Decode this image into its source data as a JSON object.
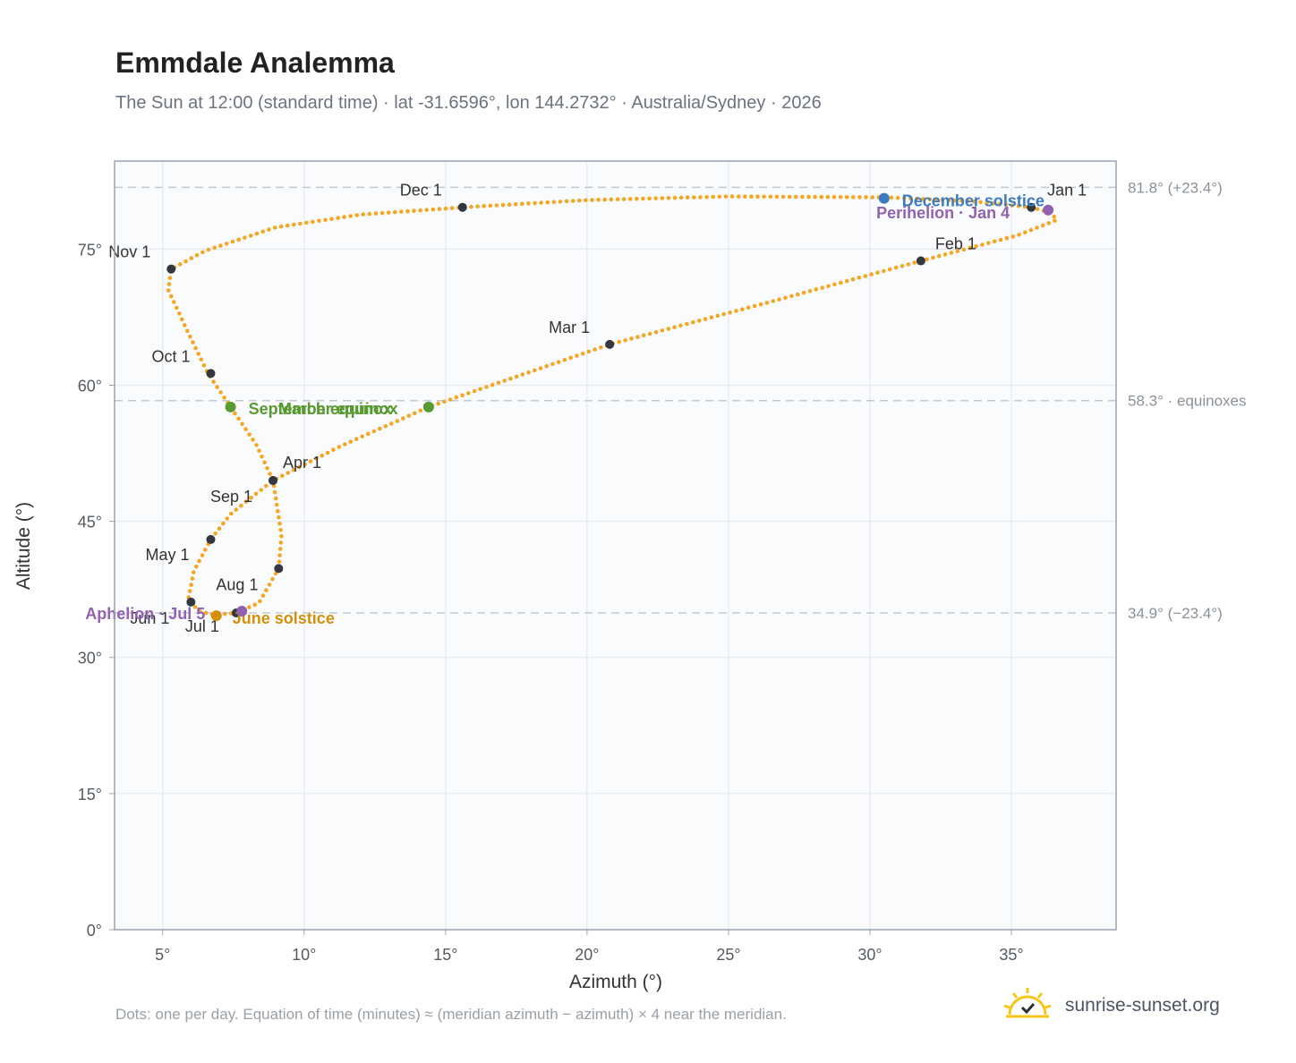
{
  "header": {
    "title": "Emmdale Analemma",
    "subtitle": "The Sun at 12:00 (standard time) · lat -31.6596°, lon 144.2732° · Australia/Sydney · 2026"
  },
  "footer": {
    "note": "Dots: one per day. Equation of time (minutes) ≈ (meridian azimuth − azimuth) × 4 near the meridian.",
    "brand": "sunrise-sunset.org"
  },
  "colors": {
    "curve": "#f5a623",
    "month_marker": "#333740",
    "equinox": "#5a9a32",
    "june_solstice": "#d4900a",
    "december_solstice": "#3b7bbf",
    "apsis": "#9062b0",
    "grid": "#e5e9ef",
    "reference_line": "#c3c9d2",
    "plot_background": "#f9fbfd"
  },
  "chart_data": {
    "type": "scatter",
    "xlabel": "Azimuth (°)",
    "ylabel": "Altitude (°)",
    "xlim": [
      3.3,
      38.7
    ],
    "ylim": [
      0,
      84.7
    ],
    "xticks": [
      5,
      10,
      15,
      20,
      25,
      30,
      35
    ],
    "yticks": [
      0,
      15,
      30,
      45,
      60,
      75
    ],
    "x_tick_labels": [
      "5°",
      "10°",
      "15°",
      "20°",
      "25°",
      "30°",
      "35°"
    ],
    "y_tick_labels": [
      "0°",
      "15°",
      "30°",
      "45°",
      "60°",
      "75°"
    ],
    "grid": true,
    "path_keypoints": [
      {
        "x": 35.7,
        "y": 79.6
      },
      {
        "x": 36.4,
        "y": 79.0
      },
      {
        "x": 36.6,
        "y": 78.2
      },
      {
        "x": 35.2,
        "y": 76.5
      },
      {
        "x": 31.8,
        "y": 73.7
      },
      {
        "x": 26.5,
        "y": 69.2
      },
      {
        "x": 20.8,
        "y": 64.5
      },
      {
        "x": 14.4,
        "y": 57.6
      },
      {
        "x": 11.3,
        "y": 53.3
      },
      {
        "x": 8.9,
        "y": 49.5
      },
      {
        "x": 7.4,
        "y": 45.8
      },
      {
        "x": 6.7,
        "y": 43.0
      },
      {
        "x": 6.1,
        "y": 39.5
      },
      {
        "x": 5.9,
        "y": 36.3
      },
      {
        "x": 6.3,
        "y": 35.1
      },
      {
        "x": 6.8,
        "y": 34.7
      },
      {
        "x": 7.6,
        "y": 34.9
      },
      {
        "x": 8.4,
        "y": 36.0
      },
      {
        "x": 9.1,
        "y": 39.8
      },
      {
        "x": 9.2,
        "y": 43.5
      },
      {
        "x": 8.9,
        "y": 49.5
      },
      {
        "x": 8.3,
        "y": 53.5
      },
      {
        "x": 7.4,
        "y": 57.6
      },
      {
        "x": 6.6,
        "y": 61.3
      },
      {
        "x": 5.9,
        "y": 65.8
      },
      {
        "x": 5.2,
        "y": 70.5
      },
      {
        "x": 5.3,
        "y": 72.8
      },
      {
        "x": 6.5,
        "y": 74.8
      },
      {
        "x": 9.0,
        "y": 77.4
      },
      {
        "x": 12.0,
        "y": 78.8
      },
      {
        "x": 15.6,
        "y": 79.6
      },
      {
        "x": 20.0,
        "y": 80.4
      },
      {
        "x": 25.0,
        "y": 80.8
      },
      {
        "x": 30.5,
        "y": 80.7
      },
      {
        "x": 33.5,
        "y": 80.3
      },
      {
        "x": 35.7,
        "y": 79.6
      }
    ],
    "month_markers": [
      {
        "label": "Jan 1",
        "x": 35.7,
        "y": 79.6,
        "ldx": 18,
        "ldy": -13
      },
      {
        "label": "Feb 1",
        "x": 31.8,
        "y": 73.7,
        "ldx": 16,
        "ldy": -13
      },
      {
        "label": "Mar 1",
        "x": 20.8,
        "y": 64.5,
        "ldx": -68,
        "ldy": -13
      },
      {
        "label": "Apr 1",
        "x": 8.9,
        "y": 49.5,
        "ldx": 11,
        "ldy": -14
      },
      {
        "label": "May 1",
        "x": 6.7,
        "y": 43.0,
        "ldx": -73,
        "ldy": 23
      },
      {
        "label": "Jun 1",
        "x": 6.0,
        "y": 36.1,
        "ldx": -68,
        "ldy": 24
      },
      {
        "label": "Jul 1",
        "x": 7.6,
        "y": 34.9,
        "ldx": -57,
        "ldy": 21
      },
      {
        "label": "Aug 1",
        "x": 9.1,
        "y": 39.8,
        "ldx": -70,
        "ldy": 24
      },
      {
        "label": "Sep 1",
        "x": 8.9,
        "y": 49.5,
        "ldx": -70,
        "ldy": 24
      },
      {
        "label": "Oct 1",
        "x": 6.7,
        "y": 61.3,
        "ldx": -66,
        "ldy": -13
      },
      {
        "label": "Nov 1",
        "x": 5.3,
        "y": 72.8,
        "ldx": -70,
        "ldy": -13
      },
      {
        "label": "Dec 1",
        "x": 15.6,
        "y": 79.6,
        "ldx": -70,
        "ldy": -13
      }
    ],
    "events": [
      {
        "label": "March equinox",
        "x": 14.4,
        "y": 57.6,
        "kind": "equinox",
        "ldx": -168,
        "ldy": 8
      },
      {
        "label": "September equinox",
        "x": 7.4,
        "y": 57.6,
        "kind": "equinox",
        "ldx": 20,
        "ldy": 8
      },
      {
        "label": "June solstice",
        "x": 6.9,
        "y": 34.6,
        "kind": "june_solstice",
        "ldx": 18,
        "ldy": 9
      },
      {
        "label": "December solstice",
        "x": 30.5,
        "y": 80.6,
        "kind": "december_solstice",
        "ldx": 20,
        "ldy": 9
      },
      {
        "label": "Aphelion · Jul 5",
        "x": 7.8,
        "y": 35.1,
        "kind": "apsis",
        "ldx": -175,
        "ldy": 9
      },
      {
        "label": "Perihelion · Jan 4",
        "x": 36.3,
        "y": 79.3,
        "kind": "apsis",
        "ldx": -192,
        "ldy": 9
      }
    ],
    "reference_lines": [
      {
        "y": 81.8,
        "label": "81.8° (+23.4°)"
      },
      {
        "y": 58.3,
        "label": "58.3° · equinoxes"
      },
      {
        "y": 34.9,
        "label": "34.9° (−23.4°)"
      }
    ]
  }
}
